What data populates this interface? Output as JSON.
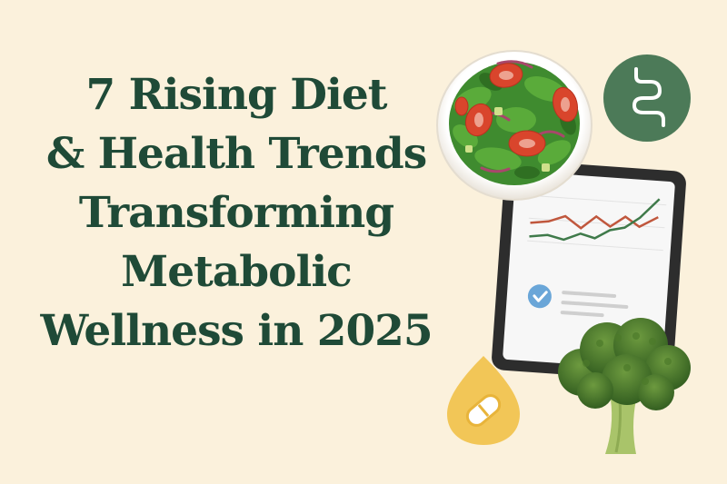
{
  "headline": {
    "lines": [
      "7 Rising Diet",
      "& Health Trends",
      "Transforming",
      "Metabolic",
      "Wellness in 2025"
    ]
  },
  "colors": {
    "background": "#fbf1dc",
    "headline": "#1f4a37",
    "gut_badge": "#4c7a58",
    "pill_drop": "#f2c657",
    "chart_red": "#c0573d",
    "chart_green": "#3f7a4a",
    "check": "#6aa6d8"
  },
  "icons": {
    "gut": "gut-icon",
    "pill": "pill-icon",
    "check": "checkmark-icon"
  }
}
